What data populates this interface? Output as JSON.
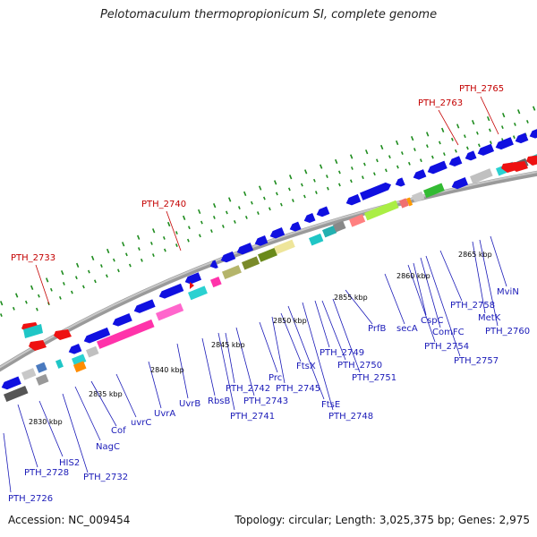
{
  "title": "Pelotomaculum thermopropionicum SI, complete genome",
  "footer": {
    "accession": "Accession: NC_009454",
    "summary": "Topology: circular; Length: 3,025,375 bp; Genes: 2,975"
  },
  "kbp_labels": [
    "2830 kbp",
    "2835 kbp",
    "2840 kbp",
    "2845 kbp",
    "2850 kbp",
    "2855 kbp",
    "2860 kbp",
    "2865 kbp"
  ],
  "red_labels": [
    "PTH_2733",
    "PTH_2740",
    "PTH_2763",
    "PTH_2765"
  ],
  "blue_labels": [
    "PTH_2726",
    "PTH_2728",
    "HIS2",
    "NagC",
    "PTH_2732",
    "Cof",
    "uvrC",
    "UvrA",
    "UvrB",
    "RbsB",
    "PTH_2741",
    "PTH_2742",
    "PTH_2743",
    "Prc",
    "FtsX",
    "PTH_2745",
    "FtsE",
    "PTH_2748",
    "PTH_2749",
    "PTH_2750",
    "PTH_2751",
    "PrfB",
    "secA",
    "CspC",
    "ComFC",
    "PTH_2754",
    "PTH_2757",
    "PTH_2758",
    "MetK",
    "PTH_2760",
    "MviN"
  ],
  "colors": {
    "gene_blue": "#1010e0",
    "label_blue": "#1a1ab8",
    "label_red": "#c40000",
    "tick_green": "#1e8c1e",
    "backbone": "#9a9a9a"
  }
}
